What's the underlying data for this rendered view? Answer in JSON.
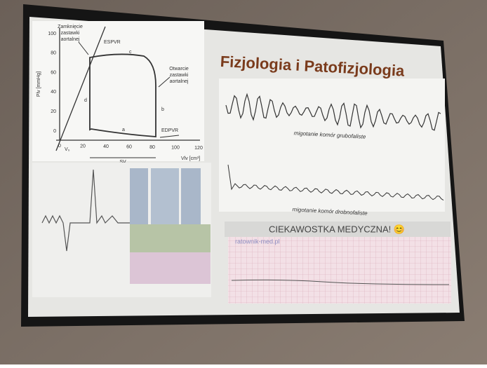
{
  "slide": {
    "title": "Fizjologia i Patofizjologia",
    "pv_loop": {
      "y_label": "Plv [mmHg]",
      "x_label": "Vlv [cm³]",
      "y_ticks": [
        "100",
        "80",
        "60",
        "40",
        "20",
        "0"
      ],
      "x_ticks": [
        "0",
        "20",
        "40",
        "60",
        "80",
        "100",
        "120"
      ],
      "closing_valve": [
        "Zamknięcie",
        "zastawki",
        "aortalnej"
      ],
      "opening_valve": [
        "Otwarcie",
        "zastawki",
        "aortalnej"
      ],
      "espvr": "ESPVR",
      "edpvr": "EDPVR",
      "point_a": "a",
      "point_b": "b",
      "point_c": "c",
      "point_d": "d",
      "v0": "V₀",
      "sv": "SV"
    },
    "ecg": [
      {
        "caption": "migotanie komór grubofaliste"
      },
      {
        "caption": "migotanie komór drobnofaliste"
      }
    ],
    "note": {
      "heading": "CIEKAWOSTKA MEDYCZNA! 😊",
      "watermark": "ratownik-med.pl"
    }
  }
}
